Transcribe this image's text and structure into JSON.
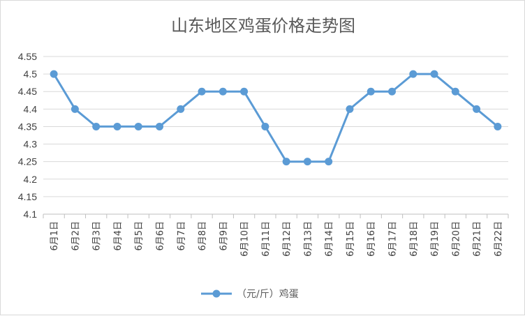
{
  "chart_data": {
    "type": "line",
    "title": "山东地区鸡蛋价格走势图",
    "categories": [
      "6月1日",
      "6月2日",
      "6月3日",
      "6月4日",
      "6月5日",
      "6月6日",
      "6月7日",
      "6月8日",
      "6月9日",
      "6月10日",
      "6月11日",
      "6月12日",
      "6月13日",
      "6月14日",
      "6月15日",
      "6月16日",
      "6月17日",
      "6月18日",
      "6月19日",
      "6月20日",
      "6月21日",
      "6月22日"
    ],
    "series": [
      {
        "name": "（元/斤）鸡蛋",
        "color": "#5b9bd5",
        "values": [
          4.5,
          4.4,
          4.35,
          4.35,
          4.35,
          4.35,
          4.4,
          4.45,
          4.45,
          4.45,
          4.35,
          4.25,
          4.25,
          4.25,
          4.4,
          4.45,
          4.45,
          4.5,
          4.5,
          4.45,
          4.4,
          4.35
        ]
      }
    ],
    "yticks": [
      "4.55",
      "4.5",
      "4.45",
      "4.4",
      "4.35",
      "4.3",
      "4.25",
      "4.2",
      "4.15",
      "4.1"
    ],
    "ylim": [
      4.1,
      4.55
    ],
    "grid": true,
    "legend_position": "bottom"
  }
}
